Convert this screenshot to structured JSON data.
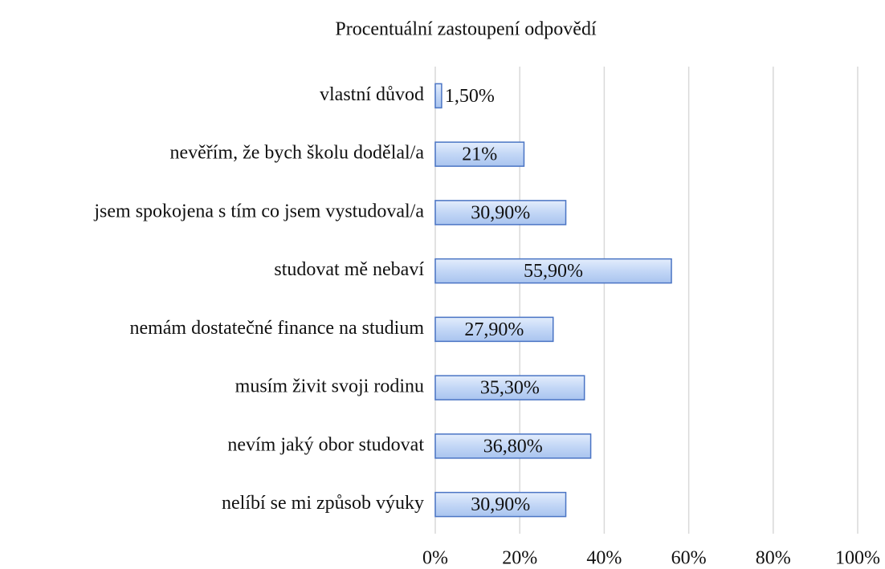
{
  "chart_data": {
    "type": "barh",
    "title": "Procentuální zastoupení odpovědí",
    "categories": [
      "vlastní důvod",
      "nevěřím, že bych školu dodělal/a",
      "jsem spokojena s tím co jsem vystudoval/a",
      "studovat mě nebaví",
      "nemám dostatečné finance na studium",
      "musím živit svoji rodinu",
      "nevím jaký obor studovat",
      "nelíbí se mi způsob výuky"
    ],
    "values": [
      1.5,
      21,
      30.9,
      55.9,
      27.9,
      35.3,
      36.8,
      30.9
    ],
    "value_labels": [
      "1,50%",
      "21%",
      "30,90%",
      "55,90%",
      "27,90%",
      "35,30%",
      "36,80%",
      "30,90%"
    ],
    "color": "#4a74c4",
    "xlim": [
      0,
      100
    ],
    "xticks": [
      {
        "value": 0,
        "label": "0%"
      },
      {
        "value": 20,
        "label": "20%"
      },
      {
        "value": 40,
        "label": "40%"
      },
      {
        "value": 60,
        "label": "60%"
      },
      {
        "value": 80,
        "label": "80%"
      },
      {
        "value": 100,
        "label": "100%"
      }
    ],
    "grid": true
  }
}
